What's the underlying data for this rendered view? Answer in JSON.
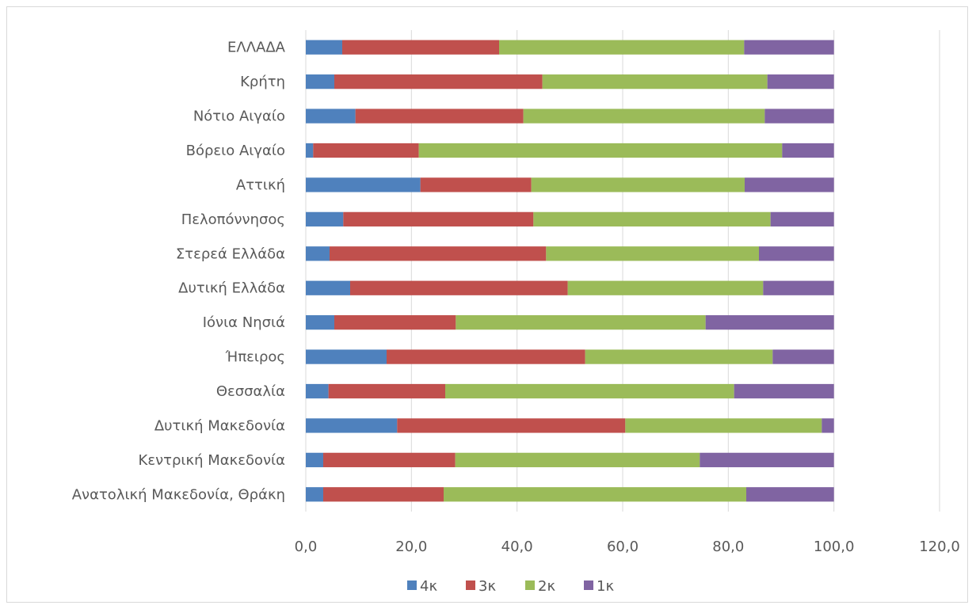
{
  "chart_data": {
    "type": "bar",
    "orientation": "horizontal",
    "stacked": true,
    "title": "",
    "xlabel": "",
    "ylabel": "",
    "xlim": [
      0,
      120
    ],
    "x_ticks": [
      "0,0",
      "20,0",
      "40,0",
      "60,0",
      "80,0",
      "100,0",
      "120,0"
    ],
    "grid": "vertical",
    "legend_position": "bottom",
    "categories": [
      "ΕΛΛΑΔΑ",
      "Κρήτη",
      "Νότιο Αιγαίο",
      "Βόρειο Αιγαίο",
      "Αττική",
      "Πελοπόννησος",
      "Στερεά Ελλάδα",
      "Δυτική Ελλάδα",
      "Ιόνια Νησιά",
      "Ήπειρος",
      "Θεσσαλία",
      "Δυτική Μακεδονία",
      "Κεντρική Μακεδονία",
      "Ανατολική Μακεδονία, Θράκη"
    ],
    "series": [
      {
        "name": "4κ",
        "color": "#4f81bd",
        "values": [
          6.9,
          5.4,
          9.4,
          1.4,
          21.7,
          7.1,
          4.5,
          8.4,
          5.4,
          15.3,
          4.3,
          17.3,
          3.3,
          3.3
        ]
      },
      {
        "name": "3κ",
        "color": "#c0504d",
        "values": [
          29.7,
          39.4,
          31.8,
          20.0,
          21.0,
          36.0,
          41.0,
          41.2,
          23.0,
          37.6,
          22.1,
          43.2,
          25.0,
          22.8
        ]
      },
      {
        "name": "2κ",
        "color": "#9bbb59",
        "values": [
          46.4,
          42.6,
          45.7,
          68.8,
          40.4,
          44.9,
          40.3,
          37.0,
          47.3,
          35.5,
          54.7,
          37.2,
          46.3,
          57.3
        ]
      },
      {
        "name": "1κ",
        "color": "#8064a2",
        "values": [
          17.0,
          12.6,
          13.1,
          9.8,
          16.9,
          12.0,
          14.2,
          13.4,
          24.3,
          11.6,
          18.9,
          2.3,
          25.4,
          16.6
        ]
      }
    ]
  }
}
